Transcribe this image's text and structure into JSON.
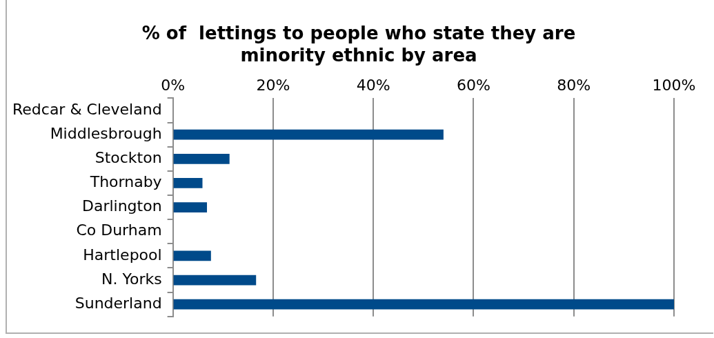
{
  "chart_data": {
    "type": "bar",
    "orientation": "horizontal",
    "title": "% of  lettings to people who state they are minority ethnic by area",
    "categories": [
      "Redcar & Cleveland",
      "Middlesbrough",
      "Stockton",
      "Thornaby",
      "Darlington",
      "Co Durham",
      "Hartlepool",
      "N. Yorks",
      "Sunderland"
    ],
    "values": [
      0,
      54.0,
      11.3,
      5.9,
      6.8,
      0,
      7.6,
      16.6,
      100
    ],
    "color": "#004a8a",
    "xlim": [
      0,
      100
    ],
    "xticks": [
      {
        "value": 0,
        "label": "0%"
      },
      {
        "value": 20,
        "label": "20%"
      },
      {
        "value": 40,
        "label": "40%"
      },
      {
        "value": 60,
        "label": "60%"
      },
      {
        "value": 80,
        "label": "80%"
      },
      {
        "value": 100,
        "label": "100%"
      }
    ],
    "grid": "x",
    "legend": false
  }
}
